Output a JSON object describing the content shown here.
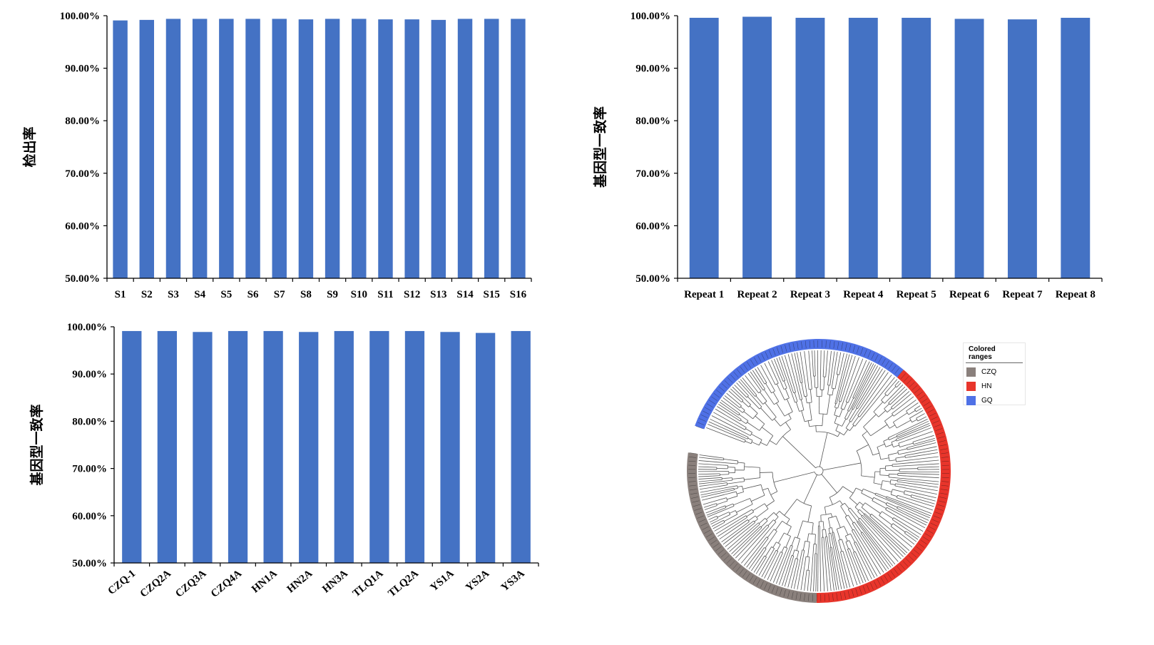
{
  "colors": {
    "bar": "#4472c4",
    "axis": "#000000",
    "tree_czq": "#8a807c",
    "tree_hn": "#e8352b",
    "tree_gq": "#4f71e6",
    "tree_branch": "#555555"
  },
  "chart_data": [
    {
      "type": "bar",
      "title": "",
      "xlabel": "",
      "ylabel": "检出率",
      "ylim": [
        0.5,
        1.0
      ],
      "ytick_labels": [
        "50.00%",
        "60.00%",
        "70.00%",
        "80.00%",
        "90.00%",
        "100.00%"
      ],
      "yticks": [
        0.5,
        0.6,
        0.7,
        0.8,
        0.9,
        1.0
      ],
      "categories": [
        "S1",
        "S2",
        "S3",
        "S4",
        "S5",
        "S6",
        "S7",
        "S8",
        "S9",
        "S10",
        "S11",
        "S12",
        "S13",
        "S14",
        "S15",
        "S16"
      ],
      "values": [
        0.991,
        0.992,
        0.994,
        0.994,
        0.994,
        0.994,
        0.994,
        0.993,
        0.994,
        0.994,
        0.993,
        0.993,
        0.992,
        0.994,
        0.994,
        0.994
      ],
      "grid": false,
      "xtick_rotation": 0
    },
    {
      "type": "bar",
      "title": "",
      "xlabel": "",
      "ylabel": "基因型一致率",
      "ylim": [
        0.5,
        1.0
      ],
      "ytick_labels": [
        "50.00%",
        "60.00%",
        "70.00%",
        "80.00%",
        "90.00%",
        "100.00%"
      ],
      "yticks": [
        0.5,
        0.6,
        0.7,
        0.8,
        0.9,
        1.0
      ],
      "categories": [
        "Repeat 1",
        "Repeat 2",
        "Repeat 3",
        "Repeat 4",
        "Repeat 5",
        "Repeat 6",
        "Repeat 7",
        "Repeat 8"
      ],
      "values": [
        0.996,
        0.998,
        0.996,
        0.996,
        0.996,
        0.994,
        0.993,
        0.996
      ],
      "grid": false,
      "xtick_rotation": 0
    },
    {
      "type": "bar",
      "title": "",
      "xlabel": "",
      "ylabel": "基因型一致率",
      "ylim": [
        0.5,
        1.0
      ],
      "ytick_labels": [
        "50.00%",
        "60.00%",
        "70.00%",
        "80.00%",
        "90.00%",
        "100.00%"
      ],
      "yticks": [
        0.5,
        0.6,
        0.7,
        0.8,
        0.9,
        1.0
      ],
      "categories": [
        "CZQ-1",
        "CZQ2A",
        "CZQ3A",
        "CZQ4A",
        "HN1A",
        "HN2A",
        "HN3A",
        "TLQ1A",
        "TLQ2A",
        "YS1A",
        "YS2A",
        "YS3A"
      ],
      "values": [
        0.991,
        0.991,
        0.989,
        0.991,
        0.991,
        0.989,
        0.991,
        0.991,
        0.991,
        0.989,
        0.987,
        0.991
      ],
      "grid": false,
      "xtick_rotation": -40
    }
  ],
  "tree": {
    "legend_title": "Colored ranges",
    "legend_items": [
      {
        "label": "CZQ",
        "color": "#8a807c"
      },
      {
        "label": "HN",
        "color": "#e8352b"
      },
      {
        "label": "GQ",
        "color": "#4f71e6"
      }
    ]
  }
}
